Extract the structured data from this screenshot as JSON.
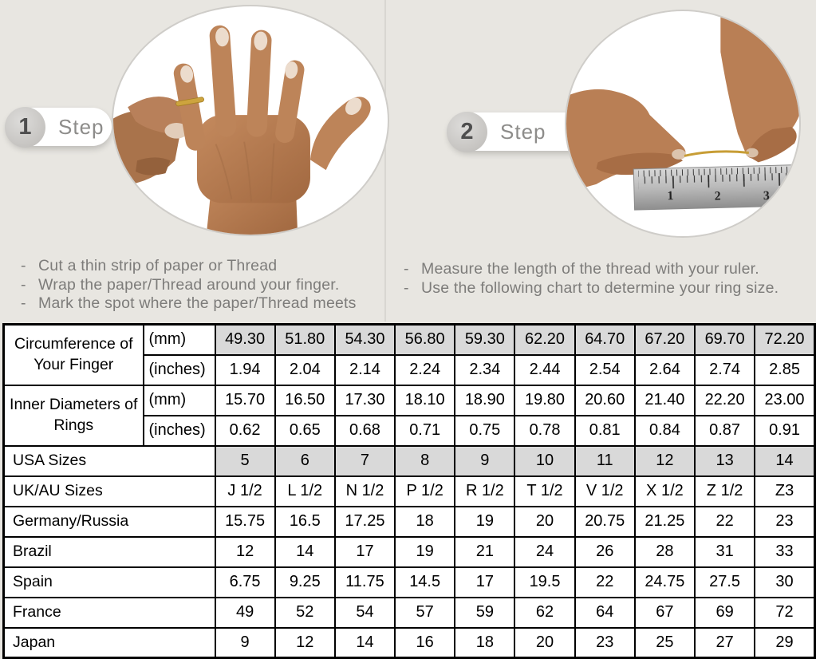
{
  "page": {
    "background_color": "#e8e6e1",
    "divider_color": "#d8d6d1"
  },
  "steps": [
    {
      "number": "1",
      "label": "Step",
      "bullet": "-",
      "photo_icon": "hand-with-thread-around-finger",
      "instructions": [
        "Cut a thin strip of paper or Thread",
        "Wrap the paper/Thread around your finger.",
        "Mark the spot where the paper/Thread meets"
      ]
    },
    {
      "number": "2",
      "label": "Step",
      "bullet": "-",
      "photo_icon": "hands-measuring-thread-with-ruler",
      "ruler_numbers": [
        "1",
        "2",
        "3"
      ],
      "instructions": [
        "Measure the length of the thread with your ruler.",
        "Use the following chart to determine your ring size."
      ]
    }
  ],
  "size_chart": {
    "border_color": "#000000",
    "shaded_cell_color": "#d9d9d9",
    "row_groups": [
      {
        "label": "Circumference of Your Finger",
        "rows": [
          {
            "unit": "(mm)",
            "shaded": true,
            "values": [
              "49.30",
              "51.80",
              "54.30",
              "56.80",
              "59.30",
              "62.20",
              "64.70",
              "67.20",
              "69.70",
              "72.20"
            ]
          },
          {
            "unit": "(inches)",
            "shaded": false,
            "values": [
              "1.94",
              "2.04",
              "2.14",
              "2.24",
              "2.34",
              "2.44",
              "2.54",
              "2.64",
              "2.74",
              "2.85"
            ]
          }
        ]
      },
      {
        "label": "Inner Diameters of Rings",
        "rows": [
          {
            "unit": "(mm)",
            "shaded": false,
            "values": [
              "15.70",
              "16.50",
              "17.30",
              "18.10",
              "18.90",
              "19.80",
              "20.60",
              "21.40",
              "22.20",
              "23.00"
            ]
          },
          {
            "unit": "(inches)",
            "shaded": false,
            "values": [
              "0.62",
              "0.65",
              "0.68",
              "0.71",
              "0.75",
              "0.78",
              "0.81",
              "0.84",
              "0.87",
              "0.91"
            ]
          }
        ]
      }
    ],
    "simple_rows": [
      {
        "label": "USA Sizes",
        "shaded": true,
        "values": [
          "5",
          "6",
          "7",
          "8",
          "9",
          "10",
          "11",
          "12",
          "13",
          "14"
        ]
      },
      {
        "label": "UK/AU Sizes",
        "shaded": false,
        "values": [
          "J 1/2",
          "L 1/2",
          "N 1/2",
          "P 1/2",
          "R 1/2",
          "T 1/2",
          "V 1/2",
          "X 1/2",
          "Z 1/2",
          "Z3"
        ]
      },
      {
        "label": "Germany/Russia",
        "shaded": false,
        "values": [
          "15.75",
          "16.5",
          "17.25",
          "18",
          "19",
          "20",
          "20.75",
          "21.25",
          "22",
          "23"
        ]
      },
      {
        "label": "Brazil",
        "shaded": false,
        "values": [
          "12",
          "14",
          "17",
          "19",
          "21",
          "24",
          "26",
          "28",
          "31",
          "33"
        ]
      },
      {
        "label": "Spain",
        "shaded": false,
        "values": [
          "6.75",
          "9.25",
          "11.75",
          "14.5",
          "17",
          "19.5",
          "22",
          "24.75",
          "27.5",
          "30"
        ]
      },
      {
        "label": "France",
        "shaded": false,
        "values": [
          "49",
          "52",
          "54",
          "57",
          "59",
          "62",
          "64",
          "67",
          "69",
          "72"
        ]
      },
      {
        "label": "Japan",
        "shaded": false,
        "values": [
          "9",
          "12",
          "14",
          "16",
          "18",
          "20",
          "23",
          "25",
          "27",
          "29"
        ]
      }
    ]
  }
}
